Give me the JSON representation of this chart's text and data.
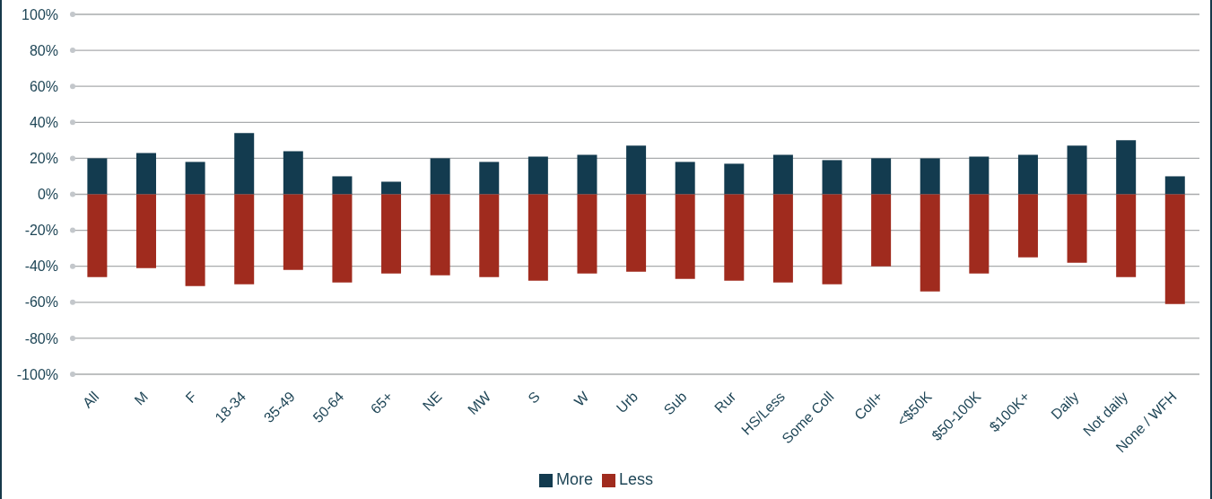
{
  "chart_data": {
    "type": "bar",
    "stacked": true,
    "categories": [
      "All",
      "M",
      "F",
      "18-34",
      "35-49",
      "50-64",
      "65+",
      "NE",
      "MW",
      "S",
      "W",
      "Urb",
      "Sub",
      "Rur",
      "HS/Less",
      "Some Coll",
      "Coll+",
      "<$50K",
      "$50-100K",
      "$100K+",
      "Daily",
      "Not daily",
      "None / WFH"
    ],
    "series": [
      {
        "name": "More",
        "color": "#133b4f",
        "values": [
          20,
          23,
          18,
          34,
          24,
          10,
          7,
          20,
          18,
          21,
          22,
          27,
          18,
          17,
          22,
          19,
          20,
          20,
          21,
          22,
          27,
          30,
          10
        ]
      },
      {
        "name": "Less",
        "color": "#a02b1e",
        "values": [
          -46,
          -41,
          -51,
          -50,
          -42,
          -49,
          -44,
          -45,
          -46,
          -48,
          -44,
          -43,
          -47,
          -48,
          -49,
          -50,
          -40,
          -54,
          -44,
          -35,
          -38,
          -46,
          -61
        ]
      }
    ],
    "ylim": [
      -100,
      100
    ],
    "yticks": [
      {
        "value": -100,
        "label": "-100%"
      },
      {
        "value": -80,
        "label": "-80%"
      },
      {
        "value": -60,
        "label": "-60%"
      },
      {
        "value": -40,
        "label": "-40%"
      },
      {
        "value": -20,
        "label": "-20%"
      },
      {
        "value": 0,
        "label": "0%"
      },
      {
        "value": 20,
        "label": "20%"
      },
      {
        "value": 40,
        "label": "40%"
      },
      {
        "value": 60,
        "label": "60%"
      },
      {
        "value": 80,
        "label": "80%"
      },
      {
        "value": 100,
        "label": "100%"
      }
    ],
    "grid": "y",
    "legend": "bottom"
  }
}
